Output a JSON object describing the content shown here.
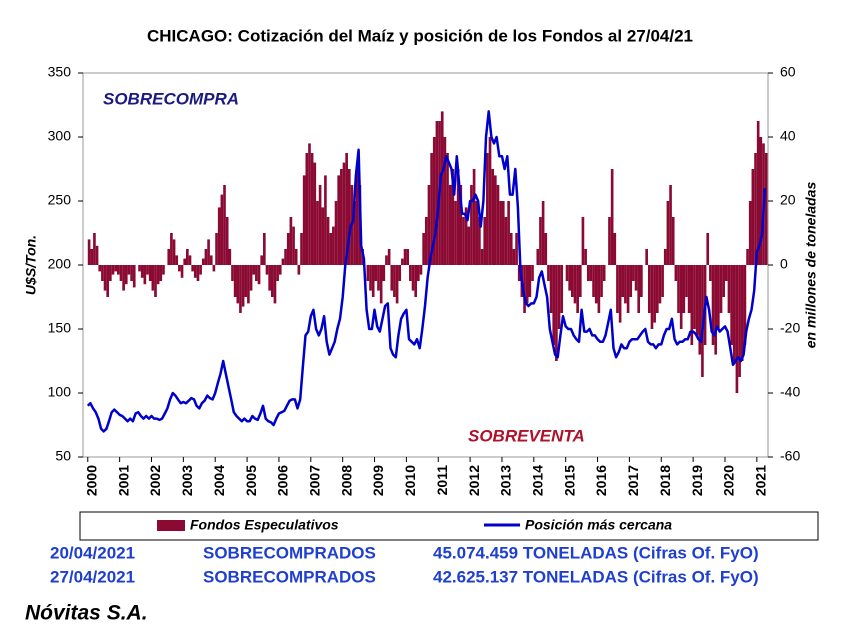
{
  "chart_data": {
    "type": "combo",
    "title": "CHICAGO: Cotización del Maíz y posición de los Fondos al 27/04/21",
    "y_label": "U$S/Ton.",
    "y2_label": "en millones de toneladas",
    "annotations": {
      "overbought": "SOBRECOMPRA",
      "oversold": "SOBREVENTA"
    },
    "xlim": [
      1999.85,
      2021.35
    ],
    "xticks": [
      2000,
      2001,
      2002,
      2003,
      2004,
      2005,
      2006,
      2007,
      2008,
      2009,
      2010,
      2011,
      2012,
      2013,
      2014,
      2015,
      2016,
      2017,
      2018,
      2019,
      2020,
      2021
    ],
    "ylim": [
      50,
      350
    ],
    "yticks": [
      50,
      100,
      150,
      200,
      250,
      300,
      350
    ],
    "y2lim": [
      -60,
      60
    ],
    "y2ticks": [
      -60,
      -40,
      -20,
      0,
      20,
      40,
      60
    ],
    "x": [
      2000,
      2000.083,
      2000.167,
      2000.25,
      2000.333,
      2000.417,
      2000.5,
      2000.583,
      2000.667,
      2000.75,
      2000.833,
      2000.917,
      2001,
      2001.083,
      2001.167,
      2001.25,
      2001.333,
      2001.417,
      2001.5,
      2001.583,
      2001.667,
      2001.75,
      2001.833,
      2001.917,
      2002,
      2002.083,
      2002.167,
      2002.25,
      2002.333,
      2002.417,
      2002.5,
      2002.583,
      2002.667,
      2002.75,
      2002.833,
      2002.917,
      2003,
      2003.083,
      2003.167,
      2003.25,
      2003.333,
      2003.417,
      2003.5,
      2003.583,
      2003.667,
      2003.75,
      2003.833,
      2003.917,
      2004,
      2004.083,
      2004.167,
      2004.25,
      2004.333,
      2004.417,
      2004.5,
      2004.583,
      2004.667,
      2004.75,
      2004.833,
      2004.917,
      2005,
      2005.083,
      2005.167,
      2005.25,
      2005.333,
      2005.417,
      2005.5,
      2005.583,
      2005.667,
      2005.75,
      2005.833,
      2005.917,
      2006,
      2006.083,
      2006.167,
      2006.25,
      2006.333,
      2006.417,
      2006.5,
      2006.583,
      2006.667,
      2006.75,
      2006.833,
      2006.917,
      2007,
      2007.083,
      2007.167,
      2007.25,
      2007.333,
      2007.417,
      2007.5,
      2007.583,
      2007.667,
      2007.75,
      2007.833,
      2007.917,
      2008,
      2008.083,
      2008.167,
      2008.25,
      2008.333,
      2008.417,
      2008.5,
      2008.583,
      2008.667,
      2008.75,
      2008.833,
      2008.917,
      2009,
      2009.083,
      2009.167,
      2009.25,
      2009.333,
      2009.417,
      2009.5,
      2009.583,
      2009.667,
      2009.75,
      2009.833,
      2009.917,
      2010,
      2010.083,
      2010.167,
      2010.25,
      2010.333,
      2010.417,
      2010.5,
      2010.583,
      2010.667,
      2010.75,
      2010.833,
      2010.917,
      2011,
      2011.083,
      2011.167,
      2011.25,
      2011.333,
      2011.417,
      2011.5,
      2011.583,
      2011.667,
      2011.75,
      2011.833,
      2011.917,
      2012,
      2012.083,
      2012.167,
      2012.25,
      2012.333,
      2012.417,
      2012.5,
      2012.583,
      2012.667,
      2012.75,
      2012.833,
      2012.917,
      2013,
      2013.083,
      2013.167,
      2013.25,
      2013.333,
      2013.417,
      2013.5,
      2013.583,
      2013.667,
      2013.75,
      2013.833,
      2013.917,
      2014,
      2014.083,
      2014.167,
      2014.25,
      2014.333,
      2014.417,
      2014.5,
      2014.583,
      2014.667,
      2014.75,
      2014.833,
      2014.917,
      2015,
      2015.083,
      2015.167,
      2015.25,
      2015.333,
      2015.417,
      2015.5,
      2015.583,
      2015.667,
      2015.75,
      2015.833,
      2015.917,
      2016,
      2016.083,
      2016.167,
      2016.25,
      2016.333,
      2016.417,
      2016.5,
      2016.583,
      2016.667,
      2016.75,
      2016.833,
      2016.917,
      2017,
      2017.083,
      2017.167,
      2017.25,
      2017.333,
      2017.417,
      2017.5,
      2017.583,
      2017.667,
      2017.75,
      2017.833,
      2017.917,
      2018,
      2018.083,
      2018.167,
      2018.25,
      2018.333,
      2018.417,
      2018.5,
      2018.583,
      2018.667,
      2018.75,
      2018.833,
      2018.917,
      2019,
      2019.083,
      2019.167,
      2019.25,
      2019.333,
      2019.417,
      2019.5,
      2019.583,
      2019.667,
      2019.75,
      2019.833,
      2019.917,
      2020,
      2020.083,
      2020.167,
      2020.25,
      2020.333,
      2020.417,
      2020.5,
      2020.583,
      2020.667,
      2020.75,
      2020.833,
      2020.917,
      2021,
      2021.083,
      2021.167,
      2021.25
    ],
    "series": [
      {
        "name": "Fondos Especulativos",
        "type": "bar",
        "axis": "y2",
        "color": "#8b0a33",
        "values": [
          8,
          5,
          10,
          6,
          -2,
          -5,
          -8,
          -10,
          -5,
          -3,
          -2,
          -3,
          -5,
          -8,
          -6,
          -3,
          -5,
          -7,
          0,
          -2,
          -4,
          -6,
          -3,
          -5,
          -8,
          -10,
          -6,
          -5,
          -3,
          0,
          5,
          10,
          8,
          3,
          -2,
          -4,
          2,
          5,
          3,
          -2,
          -4,
          -5,
          -3,
          2,
          5,
          8,
          3,
          -2,
          10,
          18,
          22,
          25,
          15,
          5,
          -5,
          -10,
          -12,
          -15,
          -13,
          -10,
          -12,
          -8,
          -3,
          -5,
          -6,
          3,
          10,
          -3,
          -8,
          -10,
          -12,
          -5,
          -3,
          2,
          5,
          10,
          15,
          12,
          5,
          -3,
          10,
          28,
          35,
          38,
          35,
          32,
          20,
          25,
          18,
          28,
          15,
          10,
          12,
          20,
          28,
          30,
          32,
          35,
          30,
          25,
          20,
          30,
          25,
          5,
          0,
          -5,
          -8,
          -10,
          -5,
          -8,
          -12,
          -5,
          3,
          5,
          -8,
          -10,
          -12,
          -5,
          2,
          5,
          5,
          -5,
          -8,
          -10,
          -5,
          -3,
          10,
          15,
          25,
          35,
          40,
          45,
          45,
          48,
          40,
          35,
          25,
          30,
          20,
          30,
          25,
          15,
          18,
          12,
          25,
          30,
          20,
          15,
          5,
          15,
          35,
          40,
          30,
          28,
          25,
          20,
          20,
          15,
          20,
          10,
          5,
          10,
          -5,
          -10,
          -15,
          -12,
          -10,
          -5,
          0,
          5,
          15,
          20,
          10,
          -5,
          -15,
          -25,
          -30,
          -20,
          -15,
          0,
          -5,
          -8,
          -10,
          -12,
          -15,
          -10,
          15,
          5,
          -5,
          -5,
          -10,
          -12,
          -15,
          -10,
          -5,
          0,
          15,
          30,
          10,
          -15,
          -18,
          -10,
          -12,
          -15,
          -10,
          -5,
          -8,
          -15,
          -10,
          0,
          5,
          -15,
          -20,
          -18,
          -15,
          -12,
          -10,
          5,
          20,
          25,
          15,
          -5,
          -15,
          -20,
          -15,
          -10,
          -15,
          -25,
          -20,
          -22,
          -28,
          -35,
          -25,
          10,
          -5,
          -25,
          -28,
          -20,
          -15,
          -10,
          -5,
          -15,
          -25,
          -30,
          -40,
          -35,
          -30,
          -25,
          5,
          20,
          30,
          35,
          45,
          40,
          38,
          35
        ]
      },
      {
        "name": "Posición más cercana",
        "type": "line",
        "axis": "y",
        "color": "#0000cc",
        "values": [
          90,
          92,
          88,
          85,
          80,
          72,
          70,
          72,
          78,
          85,
          87,
          85,
          83,
          82,
          80,
          78,
          80,
          78,
          84,
          85,
          82,
          80,
          82,
          80,
          82,
          80,
          80,
          79,
          80,
          84,
          88,
          95,
          100,
          98,
          95,
          92,
          93,
          92,
          94,
          96,
          95,
          90,
          88,
          92,
          94,
          98,
          96,
          95,
          100,
          108,
          115,
          125,
          115,
          105,
          95,
          85,
          82,
          80,
          78,
          80,
          78,
          78,
          82,
          80,
          79,
          84,
          90,
          80,
          78,
          77,
          75,
          80,
          84,
          85,
          86,
          90,
          94,
          95,
          95,
          88,
          95,
          120,
          145,
          148,
          160,
          165,
          150,
          145,
          150,
          160,
          140,
          130,
          135,
          140,
          150,
          158,
          175,
          200,
          215,
          230,
          235,
          270,
          290,
          215,
          205,
          165,
          150,
          150,
          165,
          152,
          148,
          158,
          168,
          170,
          135,
          130,
          128,
          145,
          158,
          162,
          165,
          142,
          140,
          138,
          142,
          135,
          150,
          168,
          190,
          205,
          215,
          225,
          245,
          270,
          275,
          285,
          280,
          275,
          255,
          285,
          260,
          240,
          240,
          235,
          250,
          250,
          255,
          250,
          230,
          250,
          300,
          320,
          300,
          295,
          300,
          285,
          285,
          275,
          285,
          255,
          255,
          275,
          245,
          195,
          180,
          170,
          168,
          170,
          170,
          175,
          190,
          195,
          185,
          175,
          150,
          140,
          130,
          128,
          145,
          160,
          152,
          150,
          150,
          145,
          142,
          140,
          165,
          148,
          148,
          150,
          145,
          145,
          142,
          140,
          140,
          145,
          155,
          165,
          135,
          128,
          132,
          138,
          135,
          135,
          140,
          142,
          142,
          142,
          145,
          148,
          150,
          140,
          138,
          138,
          135,
          138,
          138,
          145,
          150,
          150,
          158,
          142,
          138,
          140,
          140,
          142,
          142,
          148,
          148,
          146,
          142,
          140,
          158,
          175,
          165,
          148,
          145,
          152,
          148,
          150,
          152,
          148,
          135,
          122,
          125,
          128,
          125,
          130,
          148,
          158,
          165,
          180,
          210,
          215,
          225,
          260
        ]
      }
    ]
  },
  "summary": [
    {
      "date": "20/04/2021",
      "status": "SOBRECOMPRADOS",
      "amount": "45.074.459 TONELADAS (Cifras Of. FyO)"
    },
    {
      "date": "27/04/2021",
      "status": "SOBRECOMPRADOS",
      "amount": "42.625.137 TONELADAS (Cifras Of. FyO)"
    }
  ],
  "footer": "Nóvitas S.A."
}
